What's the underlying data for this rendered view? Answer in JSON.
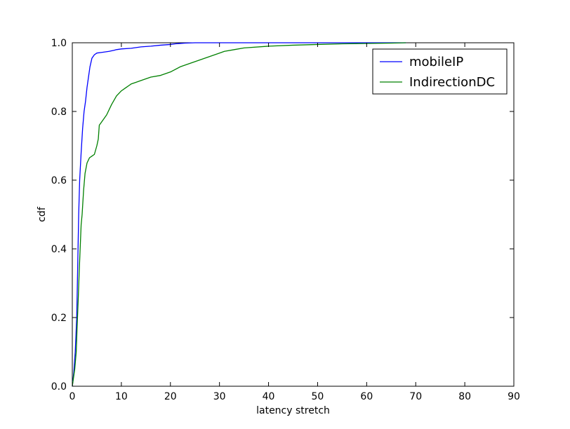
{
  "chart_data": {
    "type": "line",
    "title": "",
    "xlabel": "latency stretch",
    "ylabel": "cdf",
    "xlim": [
      0,
      90
    ],
    "ylim": [
      0.0,
      1.0
    ],
    "xticks": [
      0,
      10,
      20,
      30,
      40,
      50,
      60,
      70,
      80,
      90
    ],
    "yticks": [
      0.0,
      0.2,
      0.4,
      0.6,
      0.8,
      1.0
    ],
    "xtick_labels": [
      "0",
      "10",
      "20",
      "30",
      "40",
      "50",
      "60",
      "70",
      "80",
      "90"
    ],
    "ytick_labels": [
      "0.0",
      "0.2",
      "0.4",
      "0.6",
      "0.8",
      "1.0"
    ],
    "grid": false,
    "legend_position": "top-right",
    "series": [
      {
        "name": "mobileIP",
        "color": "#0000ff",
        "x": [
          0,
          0.3,
          0.6,
          0.9,
          1.1,
          1.3,
          1.5,
          1.8,
          2.1,
          2.4,
          2.7,
          3.0,
          3.3,
          3.6,
          4.0,
          4.5,
          5.0,
          6.0,
          7.5,
          8.5,
          9.0,
          10.0,
          12.0,
          13.0,
          14.0,
          16.0,
          18.0,
          20.0,
          21.0,
          23.0,
          25.0,
          68.0
        ],
        "y": [
          0.0,
          0.04,
          0.1,
          0.2,
          0.35,
          0.5,
          0.6,
          0.68,
          0.75,
          0.8,
          0.83,
          0.87,
          0.9,
          0.93,
          0.955,
          0.965,
          0.97,
          0.972,
          0.975,
          0.978,
          0.98,
          0.982,
          0.984,
          0.986,
          0.988,
          0.99,
          0.993,
          0.995,
          0.997,
          0.999,
          1.0,
          1.0
        ]
      },
      {
        "name": "IndirectionDC",
        "color": "#008000",
        "x": [
          0,
          0.5,
          0.8,
          1.0,
          1.2,
          1.4,
          1.6,
          1.8,
          2.0,
          2.3,
          2.6,
          3.0,
          3.5,
          4.0,
          4.5,
          5.0,
          5.3,
          5.5,
          6.0,
          7.0,
          8.0,
          9.0,
          10.0,
          11.0,
          11.5,
          12.0,
          13.0,
          14.0,
          16.0,
          18.0,
          20.0,
          22.0,
          24.0,
          26.0,
          28.0,
          30.0,
          31.0,
          33.0,
          35.0,
          40.0,
          45.0,
          50.0,
          55.0,
          60.0,
          65.0,
          68.0
        ],
        "y": [
          0.0,
          0.05,
          0.1,
          0.18,
          0.25,
          0.33,
          0.4,
          0.47,
          0.5,
          0.57,
          0.62,
          0.65,
          0.665,
          0.67,
          0.675,
          0.7,
          0.72,
          0.76,
          0.77,
          0.79,
          0.82,
          0.845,
          0.86,
          0.87,
          0.875,
          0.88,
          0.885,
          0.89,
          0.9,
          0.905,
          0.915,
          0.93,
          0.94,
          0.95,
          0.96,
          0.97,
          0.975,
          0.98,
          0.985,
          0.99,
          0.993,
          0.995,
          0.997,
          0.998,
          0.999,
          1.0
        ]
      }
    ]
  }
}
